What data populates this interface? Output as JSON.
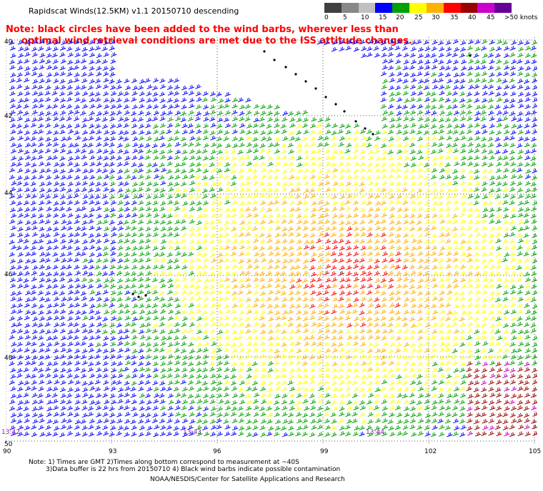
{
  "title": "Rapidscat Winds(12.5KM) v1.1 20150710 descending",
  "note": {
    "line1": "Note: black circles have been added to the wind barbs, wherever less than",
    "line2": "optimal wind retrieval conditions are met due to the ISS attitude changes."
  },
  "legend": {
    "unit": "knots",
    "labels": [
      "0",
      "5",
      "10",
      "15",
      "20",
      "25",
      "30",
      "35",
      "40",
      "45",
      ">50 knots"
    ],
    "colors": [
      "#404040",
      "#888888",
      "#c0c0c0",
      "#0000ff",
      "#00a000",
      "#ffff00",
      "#ffb000",
      "#ff0000",
      "#990000",
      "#cc00cc",
      "#660099"
    ]
  },
  "map": {
    "lat_labels": [
      "40",
      "42",
      "44",
      "46",
      "48",
      "50"
    ],
    "lon_labels": [
      "90",
      "93",
      "96",
      "99",
      "102",
      "105"
    ],
    "time_labels": [
      "13:42",
      "13:43",
      "13:44"
    ],
    "grid": "dotted"
  },
  "footer": {
    "line1": "Note: 1) Times are GMT 2)Times along bottom correspond to measurement at ~40S",
    "line2": "3)Data buffer is 22 hrs from 20150710 4) Black wind barbs indicate possible contamination",
    "line3": "NOAA/NESDIS/Center for Satellite Applications and Research"
  }
}
